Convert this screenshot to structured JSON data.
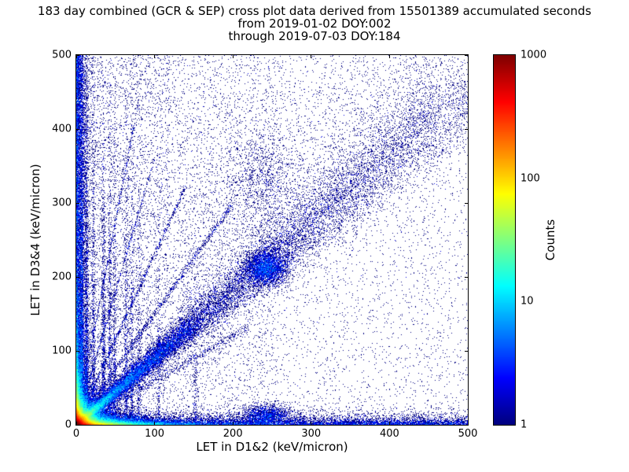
{
  "figure": {
    "background": "#ffffff",
    "axis_color": "#000000",
    "text_color": "#000000"
  },
  "chart_data": {
    "type": "scatter",
    "title": "183 day combined (GCR & SEP) cross plot data derived from 15501389 accumulated seconds",
    "subtitle_from": "from 2019-01-02 DOY:002",
    "subtitle_through": "through 2019-07-03 DOY:184",
    "xlabel": "LET in D1&2 (keV/micron)",
    "ylabel": "LET in D3&4 (keV/micron)",
    "xlim": [
      0,
      500
    ],
    "ylim": [
      0,
      500
    ],
    "xticks": [
      0,
      100,
      200,
      300,
      400,
      500
    ],
    "yticks": [
      0,
      100,
      200,
      300,
      400,
      500
    ],
    "grid": false,
    "marker_size_px": 1,
    "colorbar": {
      "label": "Counts",
      "scale": "log",
      "min": 1,
      "max": 1000,
      "ticks": [
        1,
        10,
        100,
        1000
      ],
      "colormap": "jet",
      "min_color": "#000080",
      "max_color": "#800000"
    },
    "density_model": {
      "seed": 20190102,
      "note": "procedural approximation of the 2D point-density cloud; counts per pixel mapped to jet colormap on log scale 1..1000",
      "components": [
        {
          "name": "origin-core",
          "kind": "corner",
          "n": 42000,
          "sx": 5.5,
          "sy": 5.5
        },
        {
          "name": "origin-halo",
          "kind": "corner",
          "n": 16000,
          "sx": 14,
          "sy": 13
        },
        {
          "name": "bottom-hot-streak",
          "kind": "corner",
          "n": 9000,
          "sx": 18,
          "sy": 2.2
        },
        {
          "name": "left-hot-streak",
          "kind": "corner",
          "n": 7000,
          "sx": 2.2,
          "sy": 16
        },
        {
          "name": "bottom-warm-band",
          "kind": "corner",
          "n": 14000,
          "sx": 45,
          "sy": 3.5
        },
        {
          "name": "left-warm-band",
          "kind": "corner",
          "n": 9000,
          "sx": 3.5,
          "sy": 45
        },
        {
          "name": "left-column",
          "kind": "bandy",
          "n": 9000,
          "xs": 5,
          "y0": 0,
          "y1": 500
        },
        {
          "name": "bottom-band",
          "kind": "bandx",
          "n": 7000,
          "ys": 5,
          "x0": 0,
          "x1": 500
        },
        {
          "name": "main-diagonal",
          "kind": "diag",
          "n": 20000,
          "len": 520,
          "pow": 2.5,
          "spread0": 2.5,
          "spreadk": 0.055,
          "slope": 0.9
        },
        {
          "name": "inner-diagonal",
          "kind": "diag",
          "n": 6000,
          "len": 150,
          "pow": 1.8,
          "spread0": 1.8,
          "spreadk": 0.04,
          "slope": 0.9
        },
        {
          "name": "diagonal-blob",
          "kind": "gauss",
          "n": 3000,
          "cx": 243,
          "cy": 212,
          "sx": 13,
          "sy": 11
        },
        {
          "name": "upper-mid-blob",
          "kind": "gauss",
          "n": 900,
          "cx": 238,
          "cy": 330,
          "sx": 26,
          "sy": 38
        },
        {
          "name": "bottom-cluster",
          "kind": "gauss",
          "n": 1600,
          "cx": 243,
          "cy": 13,
          "sx": 16,
          "sy": 7
        },
        {
          "name": "background",
          "kind": "uniform",
          "n": 6500,
          "x0": 0,
          "x1": 500,
          "y0": 0,
          "y1": 500
        },
        {
          "name": "background-left",
          "kind": "uniform",
          "n": 3000,
          "x0": 0,
          "x1": 260,
          "y0": 0,
          "y1": 500
        },
        {
          "name": "background-left-wash",
          "kind": "uniform",
          "n": 1500,
          "x0": 0,
          "x1": 120,
          "y0": 100,
          "y1": 500
        },
        {
          "name": "stripe-7",
          "kind": "stripe",
          "n": 2600,
          "x": 7,
          "sx": 1.2,
          "ys": 260
        },
        {
          "name": "stripe-13",
          "kind": "stripe",
          "n": 1400,
          "x": 13,
          "sx": 1.3,
          "ys": 210
        },
        {
          "name": "stripe-22",
          "kind": "stripe",
          "n": 700,
          "x": 22,
          "sx": 1.3,
          "ys": 170
        },
        {
          "name": "stripe-35",
          "kind": "stripe",
          "n": 900,
          "x": 35,
          "sx": 1.4,
          "ys": 180
        },
        {
          "name": "stripe-43",
          "kind": "stripe",
          "n": 760,
          "x": 43,
          "sx": 1.4,
          "ys": 170
        },
        {
          "name": "stripe-49",
          "kind": "stripe",
          "n": 520,
          "x": 49,
          "sx": 1.4,
          "ys": 150
        },
        {
          "name": "stripe-64",
          "kind": "stripe",
          "n": 650,
          "x": 64,
          "sx": 1.5,
          "ys": 170
        },
        {
          "name": "stripe-71",
          "kind": "stripe",
          "n": 520,
          "x": 71,
          "sx": 1.5,
          "ys": 160
        },
        {
          "name": "stripe-80",
          "kind": "stripe",
          "n": 380,
          "x": 80,
          "sx": 1.5,
          "ys": 130
        },
        {
          "name": "stripe-105",
          "kind": "stripe",
          "n": 260,
          "x": 105,
          "sx": 1.6,
          "ys": 110
        },
        {
          "name": "stripe-152",
          "kind": "stripe",
          "n": 220,
          "x": 152,
          "sx": 1.8,
          "ys": 100
        },
        {
          "name": "ray-1",
          "kind": "ray",
          "n": 900,
          "slope": 1.5,
          "xmax": 200,
          "spread": 3
        },
        {
          "name": "ray-2",
          "kind": "ray",
          "n": 650,
          "slope": 2.3,
          "xmax": 140,
          "spread": 2.5
        },
        {
          "name": "ray-3",
          "kind": "ray",
          "n": 500,
          "slope": 3.6,
          "xmax": 100,
          "spread": 2.2
        },
        {
          "name": "ray-4",
          "kind": "ray",
          "n": 400,
          "slope": 5.5,
          "xmax": 80,
          "spread": 2
        },
        {
          "name": "ray-sub-diagonal",
          "kind": "ray",
          "n": 700,
          "slope": 0.6,
          "xmax": 220,
          "spread": 4
        },
        {
          "name": "upper-plume",
          "kind": "plume",
          "n": 2600,
          "x0": 130,
          "x1": 460,
          "spread": 85
        }
      ]
    }
  }
}
